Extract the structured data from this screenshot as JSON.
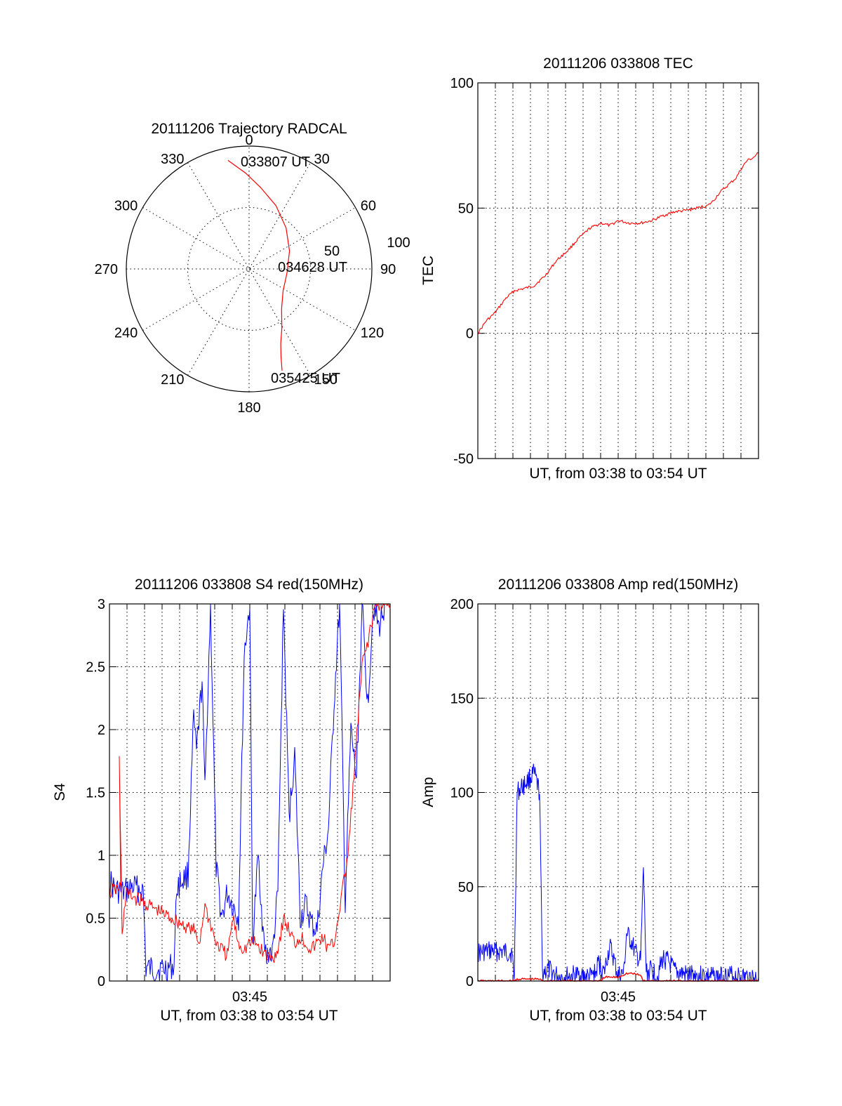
{
  "colors": {
    "red": "#ff0000",
    "blue": "#0000ff",
    "black": "#000000"
  },
  "chart_data": [
    {
      "type": "polar",
      "title": "20111206 Trajectory RADCAL",
      "angle_labels": [
        "0",
        "30",
        "60",
        "90",
        "120",
        "150",
        "180",
        "210",
        "240",
        "270",
        "300",
        "330"
      ],
      "radial_labels": [
        "50",
        "100"
      ],
      "radial_range": [
        0,
        100
      ],
      "grid": true,
      "trajectory": {
        "color": "red",
        "points": [
          {
            "az": 349,
            "r": 90
          },
          {
            "az": 358,
            "r": 78
          },
          {
            "az": 8,
            "r": 67
          },
          {
            "az": 23,
            "r": 56
          },
          {
            "az": 42,
            "r": 45
          },
          {
            "az": 66,
            "r": 36
          },
          {
            "az": 96,
            "r": 31
          },
          {
            "az": 123,
            "r": 33
          },
          {
            "az": 141,
            "r": 42
          },
          {
            "az": 151,
            "r": 55
          },
          {
            "az": 157,
            "r": 66
          },
          {
            "az": 160,
            "r": 76
          },
          {
            "az": 162,
            "r": 87
          }
        ],
        "labels": [
          "033807 UT",
          "034628 UT",
          "035425 UT"
        ]
      }
    },
    {
      "type": "line",
      "title": "20111206 033808 TEC",
      "xlabel": "UT, from 03:38 to 03:54 UT",
      "ylabel": "TEC",
      "ylim": [
        -50,
        100
      ],
      "yticks": [
        "-50",
        "0",
        "50",
        "100"
      ],
      "xlim": [
        0,
        1
      ],
      "grid": true,
      "series": [
        {
          "color": "red",
          "x": [
            0,
            0.03,
            0.06,
            0.1,
            0.13,
            0.17,
            0.2,
            0.24,
            0.28,
            0.32,
            0.36,
            0.4,
            0.44,
            0.47,
            0.5,
            0.54,
            0.58,
            0.62,
            0.66,
            0.7,
            0.74,
            0.78,
            0.82,
            0.84,
            0.86,
            0.88,
            0.9,
            0.92,
            0.94,
            0.96,
            0.98,
            1.0
          ],
          "y": [
            0,
            5,
            8,
            14,
            17,
            18,
            19,
            23,
            29,
            33,
            38,
            42,
            44,
            43,
            45,
            44,
            44,
            45,
            47,
            48.5,
            49,
            50,
            51,
            53,
            56,
            58,
            60,
            62,
            66,
            69,
            70,
            72
          ]
        }
      ]
    },
    {
      "type": "line",
      "title": "20111206 033808 S4 red(150MHz)",
      "xlabel": "UT, from 03:38 to 03:54 UT",
      "ylabel": "S4",
      "ylim": [
        0,
        3
      ],
      "yticks": [
        "0",
        "0.5",
        "1",
        "1.5",
        "2",
        "2.5",
        "3"
      ],
      "xticks": [
        {
          "x": 0.5,
          "label": "03:45"
        }
      ],
      "xlim": [
        0,
        1
      ],
      "grid": true,
      "series": [
        {
          "color": "blue",
          "x": [
            0,
            0.02,
            0.05,
            0.08,
            0.12,
            0.13,
            0.16,
            0.2,
            0.23,
            0.24,
            0.26,
            0.28,
            0.3,
            0.31,
            0.33,
            0.34,
            0.36,
            0.38,
            0.4,
            0.42,
            0.44,
            0.46,
            0.48,
            0.5,
            0.51,
            0.53,
            0.55,
            0.56,
            0.57,
            0.58,
            0.6,
            0.62,
            0.64,
            0.66,
            0.68,
            0.7,
            0.72,
            0.74,
            0.76,
            0.78,
            0.8,
            0.82,
            0.84,
            0.86,
            0.88,
            0.9,
            0.92,
            0.94,
            0.96,
            0.98,
            1.0
          ],
          "y": [
            0.8,
            0.72,
            0.7,
            0.75,
            0.72,
            0.1,
            0.09,
            0.1,
            0.12,
            0.75,
            0.8,
            0.85,
            2.1,
            1.8,
            2.4,
            1.5,
            3.0,
            0.9,
            0.5,
            0.7,
            0.6,
            0.5,
            2.6,
            3.0,
            0.3,
            1.0,
            0.3,
            0.18,
            0.25,
            0.2,
            0.7,
            3.0,
            1.3,
            1.8,
            0.5,
            0.6,
            0.45,
            0.4,
            0.9,
            1.2,
            2.2,
            3.0,
            0.6,
            2.0,
            1.6,
            3.0,
            2.2,
            3.0,
            2.8,
            3.0,
            3.0
          ]
        },
        {
          "color": "red",
          "x": [
            0,
            0.04,
            0.035,
            0.045,
            0.06,
            0.3,
            0.32,
            0.34,
            0.38,
            0.4,
            0.42,
            0.44,
            0.46,
            0.48,
            0.5,
            0.52,
            0.56,
            0.58,
            0.6,
            0.62,
            0.64,
            0.66,
            0.68,
            0.7,
            0.72,
            0.74,
            0.76,
            0.78,
            0.8,
            0.85,
            0.9,
            0.95,
            1.0
          ],
          "y": [
            0.7,
            0.75,
            1.75,
            0.4,
            0.7,
            0.4,
            0.3,
            0.6,
            0.3,
            0.25,
            0.2,
            0.5,
            0.3,
            0.25,
            0.3,
            0.3,
            0.2,
            0.18,
            0.25,
            0.5,
            0.4,
            0.3,
            0.35,
            0.3,
            0.25,
            0.3,
            0.35,
            0.25,
            0.3,
            1.0,
            2.5,
            3.0,
            3.0
          ]
        }
      ]
    },
    {
      "type": "line",
      "title": "20111206 033808 Amp red(150MHz)",
      "xlabel": "UT, from 03:38 to 03:54 UT",
      "ylabel": "Amp",
      "ylim": [
        0,
        200
      ],
      "yticks": [
        "0",
        "50",
        "100",
        "150",
        "200"
      ],
      "xticks": [
        {
          "x": 0.5,
          "label": "03:45"
        }
      ],
      "xlim": [
        0,
        1
      ],
      "grid": true,
      "series": [
        {
          "color": "blue",
          "x": [
            0,
            0.05,
            0.12,
            0.13,
            0.14,
            0.2,
            0.22,
            0.23,
            0.25,
            0.28,
            0.3,
            0.35,
            0.4,
            0.42,
            0.43,
            0.45,
            0.46,
            0.47,
            0.48,
            0.49,
            0.5,
            0.52,
            0.53,
            0.55,
            0.56,
            0.58,
            0.59,
            0.6,
            0.62,
            0.64,
            0.66,
            0.68,
            0.7,
            0.75,
            0.8,
            0.85,
            0.9,
            0.95,
            1.0
          ],
          "y": [
            15,
            16,
            15,
            3,
            100,
            110,
            100,
            5,
            6,
            3,
            2,
            3,
            2,
            4,
            10,
            4,
            12,
            18,
            14,
            8,
            3,
            4,
            25,
            20,
            15,
            10,
            60,
            4,
            6,
            3,
            12,
            10,
            5,
            3,
            3,
            2,
            3,
            2,
            2
          ]
        },
        {
          "color": "red",
          "x": [
            0,
            0.13,
            0.14,
            0.22,
            0.23,
            0.44,
            0.45,
            0.5,
            0.53,
            0.55,
            0.58,
            0.59,
            0.6,
            0.62,
            1.0
          ],
          "y": [
            0,
            0,
            1,
            1,
            0,
            0,
            2,
            2,
            4,
            4,
            3,
            0,
            0,
            0,
            0
          ]
        }
      ]
    }
  ]
}
